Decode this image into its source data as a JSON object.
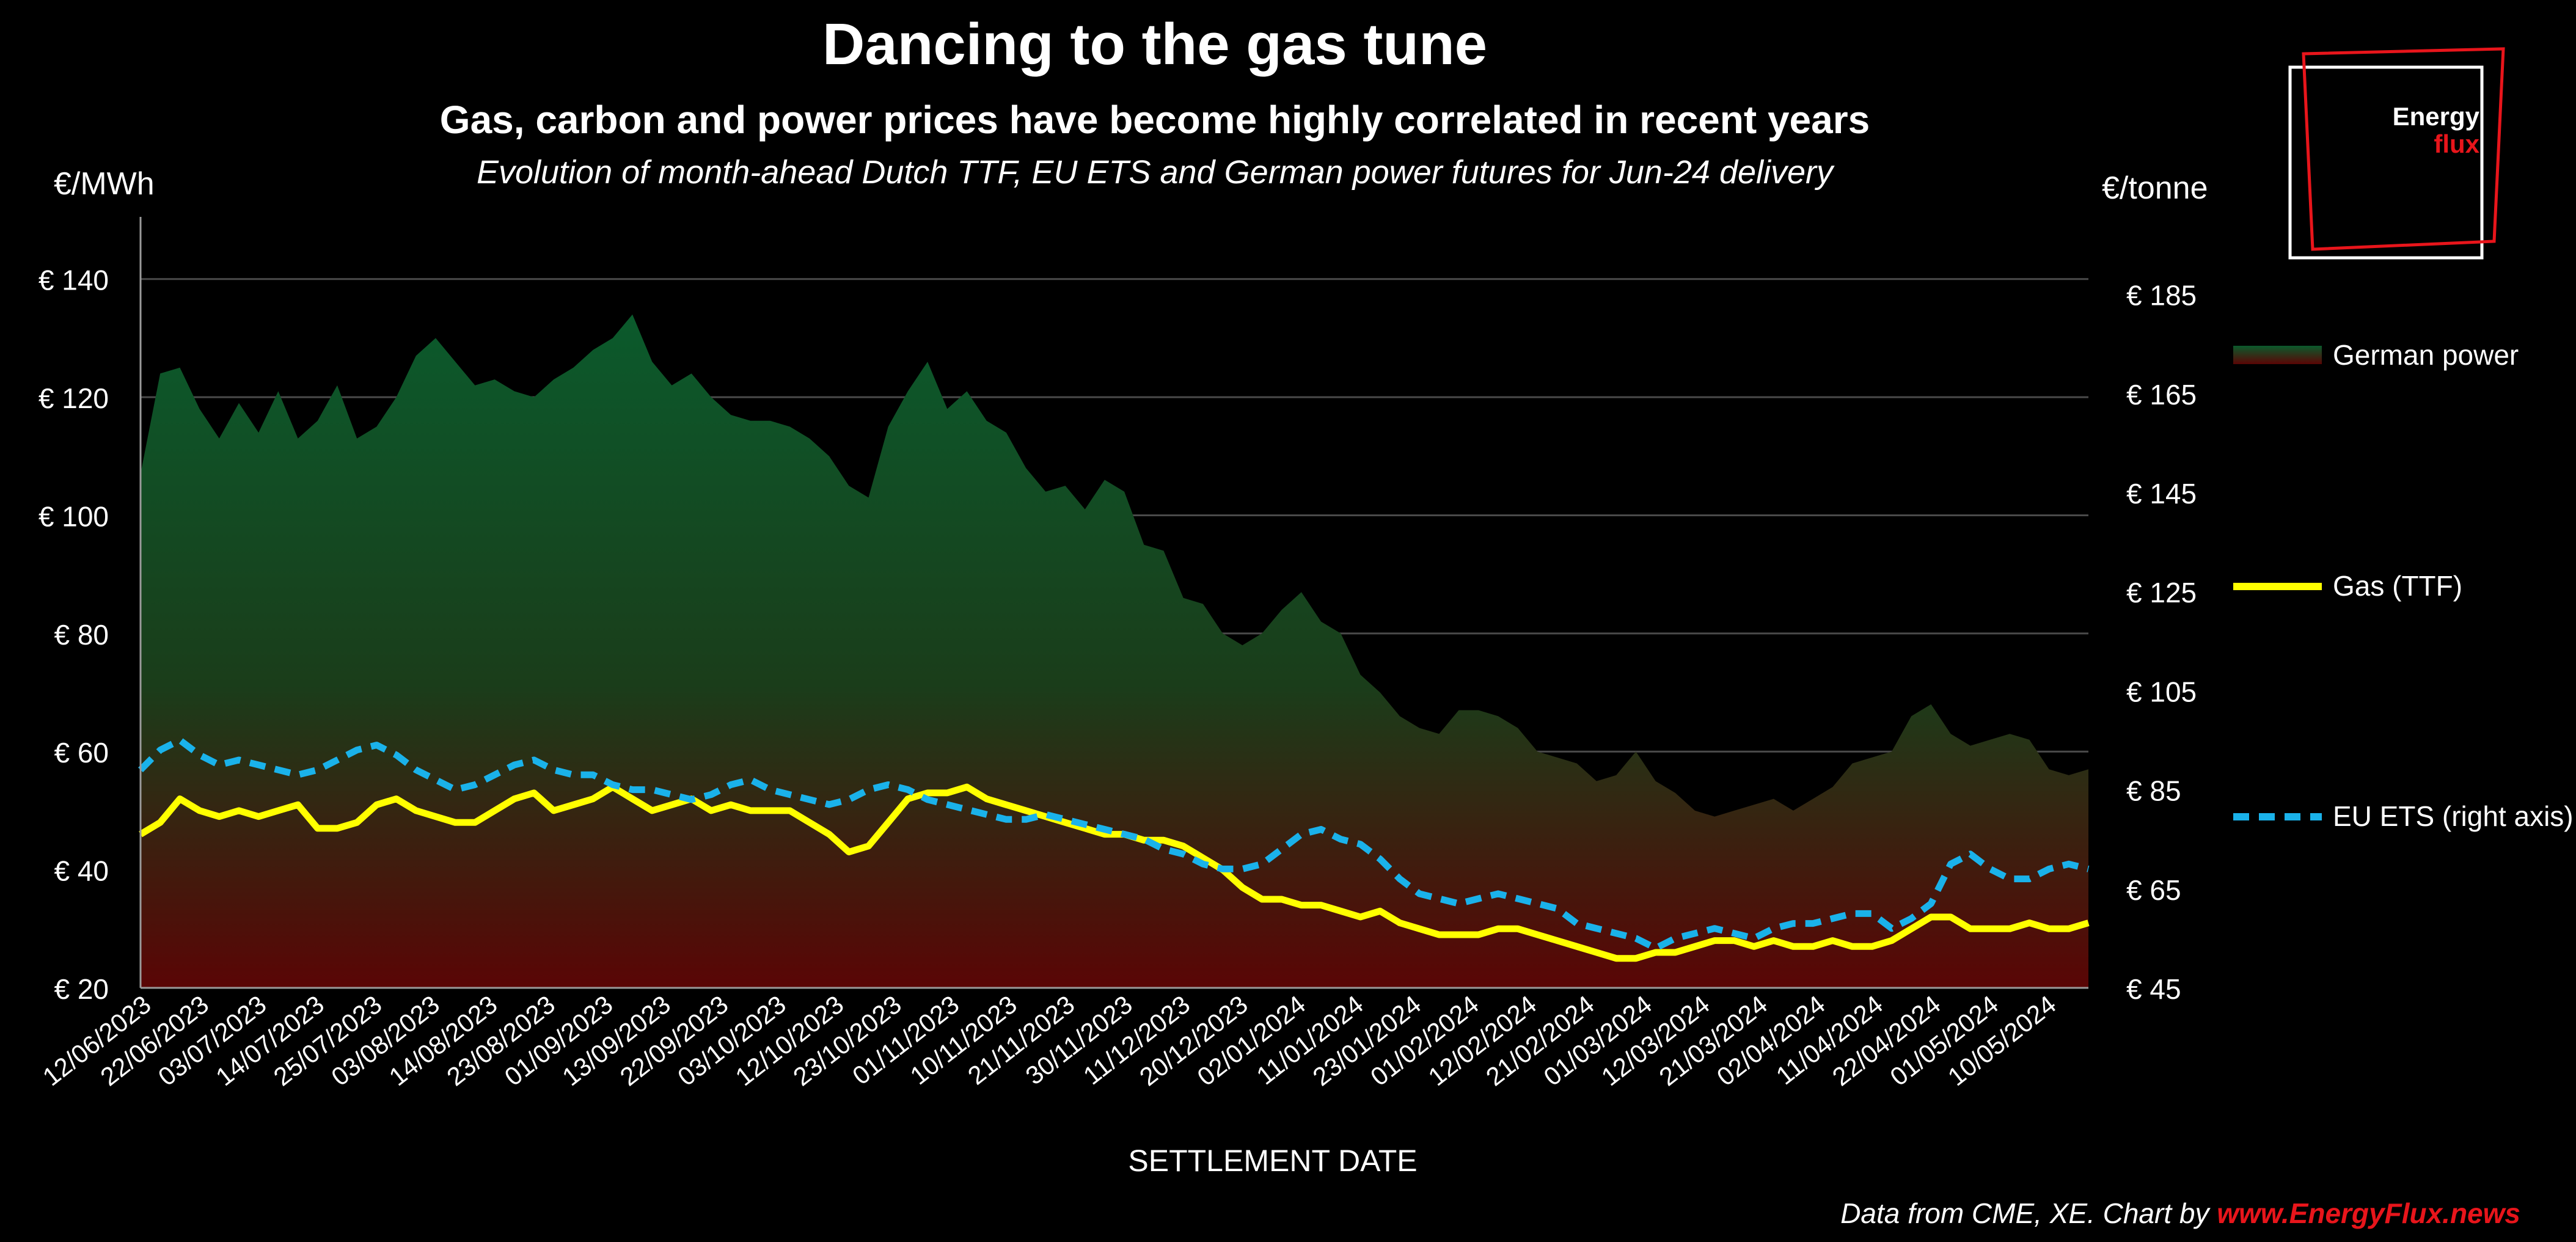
{
  "header": {
    "title": "Dancing to the gas tune",
    "subtitle": "Gas, carbon and power prices have become highly correlated in recent years",
    "description": "Evolution of month-ahead Dutch TTF, EU ETS and German power futures for Jun-24 delivery"
  },
  "logo": {
    "line1": "Energy",
    "line2": "flux"
  },
  "footer": {
    "source_prefix": "Data from CME, XE. Chart by ",
    "source_link": "www.EnergyFlux.news"
  },
  "colors": {
    "background": "#000000",
    "power_top": "#0b5a2c",
    "power_bottom": "#5a0505",
    "gas": "#ffff00",
    "ets": "#1ab2ea",
    "brand_red": "#e8151b"
  },
  "chart_data": {
    "type": "line",
    "xlabel": "SETTLEMENT DATE",
    "x_ticks": [
      "12/06/2023",
      "22/06/2023",
      "03/07/2023",
      "14/07/2023",
      "25/07/2023",
      "03/08/2023",
      "14/08/2023",
      "23/08/2023",
      "01/09/2023",
      "13/09/2023",
      "22/09/2023",
      "03/10/2023",
      "12/10/2023",
      "23/10/2023",
      "01/11/2023",
      "10/11/2023",
      "21/11/2023",
      "30/11/2023",
      "11/12/2023",
      "20/12/2023",
      "02/01/2024",
      "11/01/2024",
      "23/01/2024",
      "01/02/2024",
      "12/02/2024",
      "21/02/2024",
      "01/03/2024",
      "12/03/2024",
      "21/03/2024",
      "02/04/2024",
      "11/04/2024",
      "22/04/2024",
      "01/05/2024",
      "10/05/2024"
    ],
    "y_left": {
      "label": "€/MWh",
      "ylim": [
        20,
        150
      ],
      "ticks": [
        20,
        40,
        60,
        80,
        100,
        120,
        140
      ],
      "tick_labels": [
        "€ 20",
        "€ 40",
        "€ 60",
        "€ 80",
        "€ 100",
        "€ 120",
        "€ 140"
      ]
    },
    "y_right": {
      "label": "€/tonne",
      "ylim": [
        45,
        200
      ],
      "ticks": [
        45,
        65,
        85,
        105,
        125,
        145,
        165,
        185
      ],
      "tick_labels": [
        "€ 45",
        "€ 65",
        "€ 85",
        "€ 105",
        "€ 125",
        "€ 145",
        "€ 165",
        "€ 185"
      ]
    },
    "grid": true,
    "legend_position": "right",
    "series": [
      {
        "name": "German power",
        "kind": "area",
        "axis": "left",
        "values": [
          107,
          124,
          125,
          118,
          113,
          119,
          114,
          121,
          113,
          116,
          122,
          113,
          115,
          120,
          127,
          130,
          126,
          122,
          123,
          121,
          120,
          123,
          125,
          128,
          130,
          134,
          126,
          122,
          124,
          120,
          117,
          116,
          116,
          115,
          113,
          110,
          105,
          103,
          115,
          121,
          126,
          118,
          121,
          116,
          114,
          108,
          104,
          105,
          101,
          106,
          104,
          95,
          94,
          86,
          85,
          80,
          78,
          80,
          84,
          87,
          82,
          80,
          73,
          70,
          66,
          64,
          63,
          67,
          67,
          66,
          64,
          60,
          59,
          58,
          55,
          56,
          60,
          55,
          53,
          50,
          49,
          50,
          51,
          52,
          50,
          52,
          54,
          58,
          59,
          60,
          66,
          68,
          63,
          61,
          62,
          63,
          62,
          57,
          56,
          57
        ]
      },
      {
        "name": "Gas (TTF)",
        "kind": "line",
        "axis": "left",
        "values": [
          46,
          48,
          52,
          50,
          49,
          50,
          49,
          50,
          51,
          47,
          47,
          48,
          51,
          52,
          50,
          49,
          48,
          48,
          50,
          52,
          53,
          50,
          51,
          52,
          54,
          52,
          50,
          51,
          52,
          50,
          51,
          50,
          50,
          50,
          48,
          46,
          43,
          44,
          48,
          52,
          53,
          53,
          54,
          52,
          51,
          50,
          49,
          48,
          47,
          46,
          46,
          45,
          45,
          44,
          42,
          40,
          37,
          35,
          35,
          34,
          34,
          33,
          32,
          33,
          31,
          30,
          29,
          29,
          29,
          30,
          30,
          29,
          28,
          27,
          26,
          25,
          25,
          26,
          26,
          27,
          28,
          28,
          27,
          28,
          27,
          27,
          28,
          27,
          27,
          28,
          30,
          32,
          32,
          30,
          30,
          30,
          31,
          30,
          30,
          31
        ]
      },
      {
        "name": "EU ETS (right axis)",
        "kind": "line",
        "axis": "right",
        "style": "dashed",
        "values": [
          89,
          93,
          95,
          92,
          90,
          91,
          90,
          89,
          88,
          89,
          91,
          93,
          94,
          92,
          89,
          87,
          85,
          86,
          88,
          90,
          91,
          89,
          88,
          88,
          86,
          85,
          85,
          84,
          83,
          84,
          86,
          87,
          85,
          84,
          83,
          82,
          83,
          85,
          86,
          85,
          83,
          82,
          81,
          80,
          79,
          79,
          80,
          79,
          78,
          77,
          76,
          75,
          73,
          72,
          70,
          69,
          69,
          70,
          73,
          76,
          77,
          75,
          74,
          71,
          67,
          64,
          63,
          62,
          63,
          64,
          63,
          62,
          61,
          58,
          57,
          56,
          55,
          53,
          55,
          56,
          57,
          56,
          55,
          57,
          58,
          58,
          59,
          60,
          60,
          57,
          59,
          62,
          70,
          72,
          69,
          67,
          67,
          69,
          70,
          69
        ]
      }
    ]
  }
}
